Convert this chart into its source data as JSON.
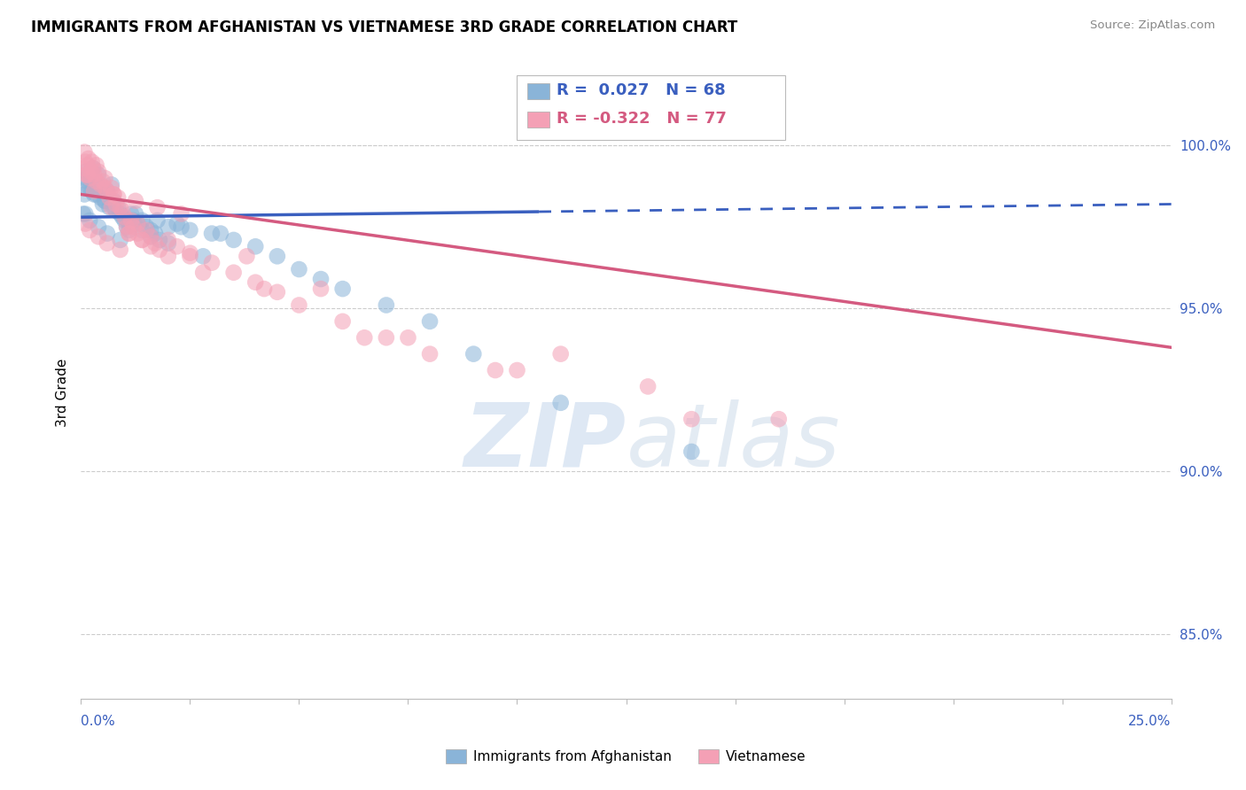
{
  "title": "IMMIGRANTS FROM AFGHANISTAN VS VIETNAMESE 3RD GRADE CORRELATION CHART",
  "source_text": "Source: ZipAtlas.com",
  "ylabel": "3rd Grade",
  "xlim": [
    0.0,
    25.0
  ],
  "ylim": [
    83.0,
    101.8
  ],
  "yticks": [
    85.0,
    90.0,
    95.0,
    100.0
  ],
  "ytick_labels": [
    "85.0%",
    "90.0%",
    "95.0%",
    "100.0%"
  ],
  "color_blue": "#8ab4d8",
  "color_pink": "#f4a0b5",
  "color_blue_line": "#3a5fbf",
  "color_pink_line": "#d45a80",
  "watermark_text": "ZIPatlas",
  "legend_label1": "Immigrants from Afghanistan",
  "legend_label2": "Vietnamese",
  "blue_trend_x0": 0.0,
  "blue_trend_x1": 25.0,
  "blue_trend_y0": 97.8,
  "blue_trend_y1": 98.2,
  "blue_dash_start": 10.5,
  "pink_trend_x0": 0.0,
  "pink_trend_x1": 25.0,
  "pink_trend_y0": 98.5,
  "pink_trend_y1": 93.8,
  "blue_x": [
    0.05,
    0.08,
    0.1,
    0.12,
    0.15,
    0.17,
    0.2,
    0.22,
    0.25,
    0.28,
    0.3,
    0.35,
    0.4,
    0.45,
    0.5,
    0.55,
    0.6,
    0.65,
    0.7,
    0.75,
    0.8,
    0.85,
    0.9,
    0.95,
    1.0,
    1.05,
    1.1,
    1.15,
    1.2,
    1.3,
    1.4,
    1.5,
    1.6,
    1.7,
    1.8,
    2.0,
    2.2,
    2.5,
    3.0,
    3.5,
    4.0,
    4.5,
    5.0,
    5.5,
    6.0,
    7.0,
    8.0,
    9.0,
    11.0,
    14.0,
    0.1,
    0.2,
    0.4,
    0.6,
    0.9,
    1.1,
    1.4,
    1.6,
    2.0,
    2.8,
    0.15,
    0.35,
    0.55,
    0.75,
    1.25,
    1.75,
    2.3,
    3.2
  ],
  "blue_y": [
    97.9,
    98.5,
    99.2,
    99.0,
    98.9,
    99.1,
    98.7,
    99.0,
    98.6,
    99.3,
    98.5,
    98.8,
    99.1,
    98.4,
    98.2,
    98.3,
    98.6,
    98.1,
    98.8,
    98.3,
    98.0,
    98.1,
    97.9,
    97.8,
    97.7,
    97.5,
    97.4,
    97.9,
    97.7,
    97.6,
    97.7,
    97.5,
    97.4,
    97.3,
    97.1,
    97.5,
    97.6,
    97.4,
    97.3,
    97.1,
    96.9,
    96.6,
    96.2,
    95.9,
    95.6,
    95.1,
    94.6,
    93.6,
    92.1,
    90.6,
    97.9,
    97.7,
    97.5,
    97.3,
    97.1,
    97.6,
    97.4,
    97.2,
    97.0,
    96.6,
    98.7,
    98.5,
    98.3,
    98.1,
    97.9,
    97.7,
    97.5,
    97.3
  ],
  "pink_x": [
    0.05,
    0.08,
    0.1,
    0.12,
    0.15,
    0.17,
    0.2,
    0.22,
    0.25,
    0.28,
    0.3,
    0.35,
    0.4,
    0.45,
    0.5,
    0.55,
    0.6,
    0.65,
    0.7,
    0.75,
    0.8,
    0.85,
    0.9,
    0.95,
    1.0,
    1.05,
    1.1,
    1.15,
    1.2,
    1.3,
    1.4,
    1.5,
    1.6,
    1.7,
    1.8,
    2.0,
    2.2,
    2.5,
    3.0,
    3.5,
    4.0,
    4.5,
    5.0,
    6.0,
    7.0,
    8.0,
    9.5,
    11.0,
    13.0,
    16.0,
    0.1,
    0.2,
    0.4,
    0.6,
    0.9,
    1.1,
    1.4,
    1.6,
    2.0,
    2.8,
    0.15,
    0.35,
    0.55,
    0.75,
    1.25,
    1.75,
    2.3,
    3.8,
    5.5,
    7.5,
    10.0,
    14.0,
    0.3,
    0.7,
    1.3,
    2.5,
    4.2,
    6.5
  ],
  "pink_y": [
    99.3,
    99.8,
    99.5,
    99.1,
    99.4,
    99.6,
    99.0,
    99.2,
    99.5,
    99.3,
    99.1,
    99.4,
    99.2,
    98.8,
    98.9,
    99.0,
    98.6,
    98.4,
    98.7,
    98.5,
    98.2,
    98.4,
    98.1,
    98.0,
    97.8,
    97.5,
    97.3,
    97.7,
    97.5,
    97.3,
    97.1,
    97.4,
    97.2,
    97.0,
    96.8,
    97.1,
    96.9,
    96.7,
    96.4,
    96.1,
    95.8,
    95.5,
    95.1,
    94.6,
    94.1,
    93.6,
    93.1,
    93.6,
    92.6,
    91.6,
    97.6,
    97.4,
    97.2,
    97.0,
    96.8,
    97.3,
    97.1,
    96.9,
    96.6,
    96.1,
    99.1,
    98.9,
    98.7,
    98.5,
    98.3,
    98.1,
    97.9,
    96.6,
    95.6,
    94.1,
    93.1,
    91.6,
    98.6,
    98.1,
    97.6,
    96.6,
    95.6,
    94.1
  ]
}
